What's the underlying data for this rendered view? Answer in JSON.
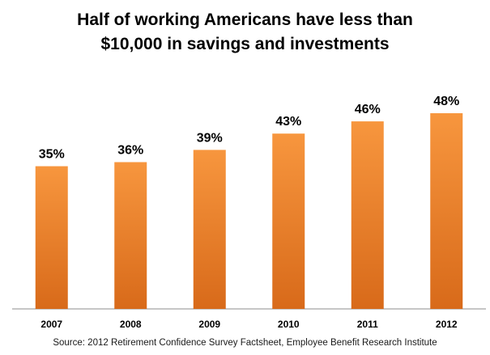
{
  "chart_data": {
    "type": "bar",
    "title_lines": [
      "Half of working Americans have less than",
      "$10,000 in savings and investments"
    ],
    "categories": [
      "2007",
      "2008",
      "2009",
      "2010",
      "2011",
      "2012"
    ],
    "values": [
      35,
      36,
      39,
      43,
      46,
      48
    ],
    "data_labels": [
      "35%",
      "36%",
      "39%",
      "43%",
      "46%",
      "48%"
    ],
    "unit": "%",
    "ylim": [
      0,
      55
    ],
    "grid": false,
    "bar_color": "#F7963E",
    "bar_color_dark": "#D86A1A",
    "source": "Source:  2012 Retirement Confidence Survey Factsheet, Employee Benefit Research Institute"
  }
}
